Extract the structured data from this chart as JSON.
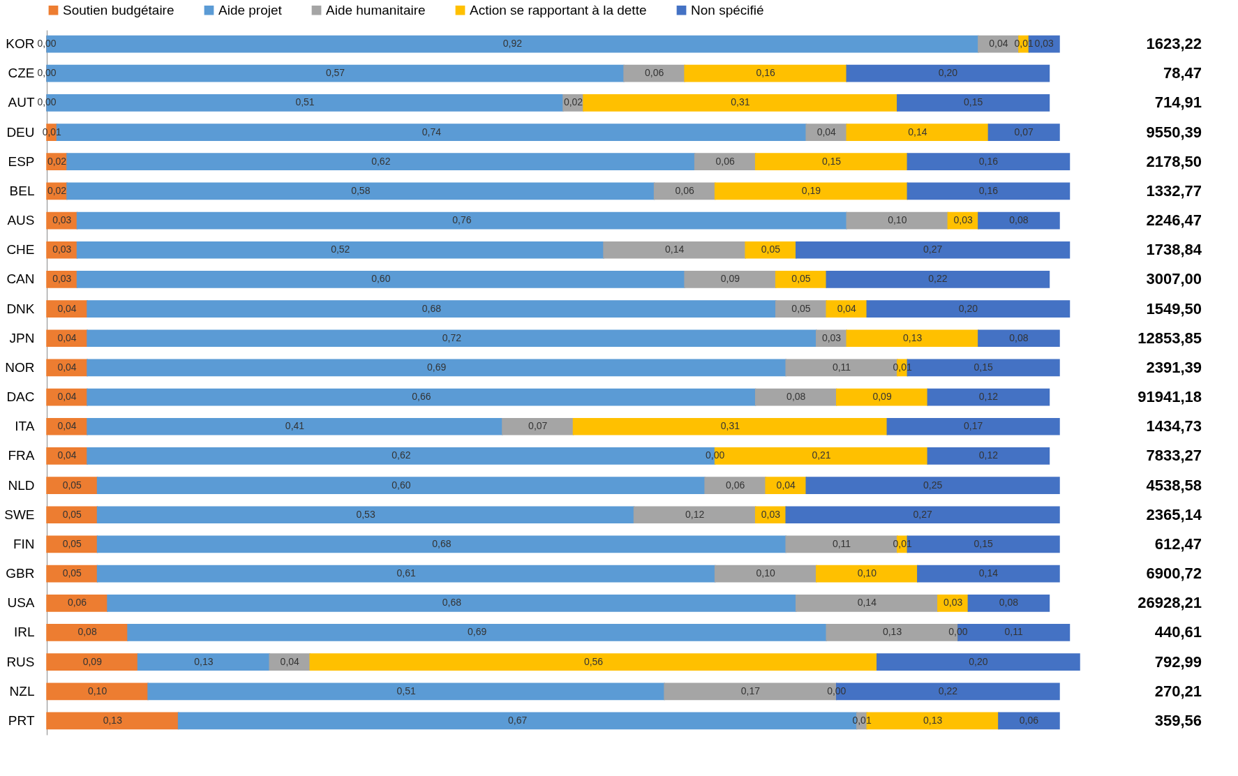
{
  "chart_data": {
    "type": "bar",
    "orientation": "horizontal",
    "stacked": true,
    "legend": "top",
    "grid": false,
    "tick_labels": "y",
    "categories": [
      "KOR",
      "CZE",
      "AUT",
      "DEU",
      "ESP",
      "BEL",
      "AUS",
      "CHE",
      "CAN",
      "DNK",
      "JPN",
      "NOR",
      "DAC",
      "ITA",
      "FRA",
      "NLD",
      "SWE",
      "FIN",
      "GBR",
      "USA",
      "IRL",
      "RUS",
      "NZL",
      "PRT"
    ],
    "series": [
      {
        "name": "Soutien budgétaire",
        "color": "#ed7d31",
        "values": [
          0.0,
          0.0,
          0.0,
          0.01,
          0.02,
          0.02,
          0.03,
          0.03,
          0.03,
          0.04,
          0.04,
          0.04,
          0.04,
          0.04,
          0.04,
          0.05,
          0.05,
          0.05,
          0.05,
          0.06,
          0.08,
          0.09,
          0.1,
          0.13
        ],
        "value_labels": [
          "0,00",
          "0,00",
          "0,00",
          "0,01",
          "0,02",
          "0,02",
          "0,03",
          "0,03",
          "0,03",
          "0,04",
          "0,04",
          "0,04",
          "0,04",
          "0,04",
          "0,04",
          "0,05",
          "0,05",
          "0,05",
          "0,05",
          "0,06",
          "0,08",
          "0,09",
          "0,10",
          "0,13"
        ]
      },
      {
        "name": "Aide projet",
        "color": "#5b9bd5",
        "values": [
          0.92,
          0.57,
          0.51,
          0.74,
          0.62,
          0.58,
          0.76,
          0.52,
          0.6,
          0.68,
          0.72,
          0.69,
          0.66,
          0.41,
          0.62,
          0.6,
          0.53,
          0.68,
          0.61,
          0.68,
          0.69,
          0.13,
          0.51,
          0.67
        ],
        "value_labels": [
          "0,92",
          "0,57",
          "0,51",
          "0,74",
          "0,62",
          "0,58",
          "0,76",
          "0,52",
          "0,60",
          "0,68",
          "0,72",
          "0,69",
          "0,66",
          "0,41",
          "0,62",
          "0,60",
          "0,53",
          "0,68",
          "0,61",
          "0,68",
          "0,69",
          "0,13",
          "0,51",
          "0,67"
        ]
      },
      {
        "name": "Aide humanitaire",
        "color": "#a5a5a5",
        "values": [
          0.04,
          0.06,
          0.02,
          0.04,
          0.06,
          0.06,
          0.1,
          0.14,
          0.09,
          0.05,
          0.03,
          0.11,
          0.08,
          0.07,
          0.0,
          0.06,
          0.12,
          0.11,
          0.1,
          0.14,
          0.13,
          0.04,
          0.17,
          0.01
        ],
        "value_labels": [
          "0,04",
          "0,06",
          "0,02",
          "0,04",
          "0,06",
          "0,06",
          "0,10",
          "0,14",
          "0,09",
          "0,05",
          "0,03",
          "0,11",
          "0,08",
          "0,07",
          "0,00",
          "0,06",
          "0,12",
          "0,11",
          "0,10",
          "0,14",
          "0,13",
          "0,04",
          "0,17",
          "0,01"
        ]
      },
      {
        "name": "Action se rapportant à la dette",
        "color": "#ffc000",
        "values": [
          0.01,
          0.16,
          0.31,
          0.14,
          0.15,
          0.19,
          0.03,
          0.05,
          0.05,
          0.04,
          0.13,
          0.01,
          0.09,
          0.31,
          0.21,
          0.04,
          0.03,
          0.01,
          0.1,
          0.03,
          0.0,
          0.56,
          0.0,
          0.13
        ],
        "value_labels": [
          "0,01",
          "0,16",
          "0,31",
          "0,14",
          "0,15",
          "0,19",
          "0,03",
          "0,05",
          "0,05",
          "0,04",
          "0,13",
          "0,01",
          "0,09",
          "0,31",
          "0,21",
          "0,04",
          "0,03",
          "0,01",
          "0,10",
          "0,03",
          "0,00",
          "0,56",
          "0,00",
          "0,13"
        ]
      },
      {
        "name": "Non spécifié",
        "color": "#4472c4",
        "values": [
          0.03,
          0.2,
          0.15,
          0.07,
          0.16,
          0.16,
          0.08,
          0.27,
          0.22,
          0.2,
          0.08,
          0.15,
          0.12,
          0.17,
          0.12,
          0.25,
          0.27,
          0.15,
          0.14,
          0.08,
          0.11,
          0.2,
          0.22,
          0.06
        ],
        "value_labels": [
          "0,03",
          "0,20",
          "0,15",
          "0,07",
          "0,16",
          "0,16",
          "0,08",
          "0,27",
          "0,22",
          "0,20",
          "0,08",
          "0,15",
          "0,12",
          "0,17",
          "0,12",
          "0,25",
          "0,27",
          "0,15",
          "0,14",
          "0,08",
          "0,11",
          "0,20",
          "0,22",
          "0,06"
        ]
      }
    ],
    "annotations": [
      "1623,22",
      "78,47",
      "714,91",
      "9550,39",
      "2178,50",
      "1332,77",
      "2246,47",
      "1738,84",
      "3007,00",
      "1549,50",
      "12853,85",
      "2391,39",
      "91941,18",
      "1434,73",
      "7833,27",
      "4538,58",
      "2365,14",
      "612,47",
      "6900,72",
      "26928,21",
      "440,61",
      "792,99",
      "270,21",
      "359,56"
    ]
  }
}
